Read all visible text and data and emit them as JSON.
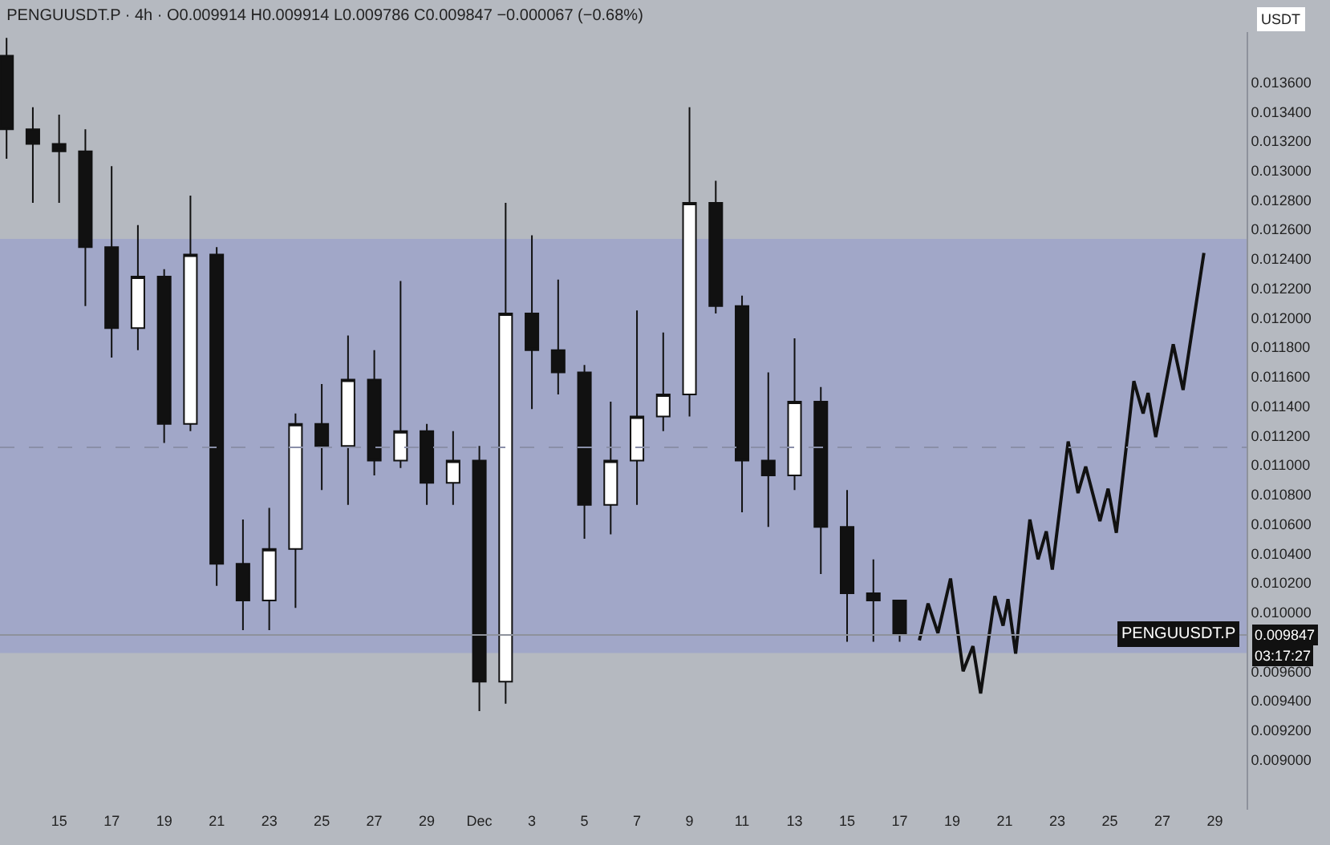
{
  "chart_data": {
    "type": "candlestick",
    "title": "PENGUUSDT.P · 4h · O0.009914 H0.009914 L0.009786 C0.009847 −0.000067 (−0.68%)",
    "ylabel": "USDT",
    "x": [
      "--11-13",
      "--11-14",
      "--11-15",
      "--11-16",
      "--11-17",
      "--11-18",
      "--11-19",
      "--11-20",
      "--11-21",
      "--11-22",
      "--11-23",
      "--11-24",
      "--11-25",
      "--11-26",
      "--11-27",
      "--11-28",
      "--11-29",
      "--11-30",
      "--12-01",
      "--12-02",
      "--12-03",
      "--12-04",
      "--12-05",
      "--12-06",
      "--12-07",
      "--12-08",
      "--12-09",
      "--12-10",
      "--12-11",
      "--12-12",
      "--12-13",
      "--12-14",
      "--12-15",
      "--12-16",
      "--12-17"
    ],
    "ohlc": [
      [
        0.01378,
        0.0139,
        0.01308,
        0.01328
      ],
      [
        0.01328,
        0.01343,
        0.01278,
        0.01318
      ],
      [
        0.01318,
        0.01338,
        0.01278,
        0.01313
      ],
      [
        0.01313,
        0.01328,
        0.01208,
        0.01248
      ],
      [
        0.01248,
        0.01303,
        0.01173,
        0.01193
      ],
      [
        0.01193,
        0.01263,
        0.01178,
        0.01228
      ],
      [
        0.01228,
        0.01233,
        0.01115,
        0.01128
      ],
      [
        0.01128,
        0.01283,
        0.01123,
        0.01243
      ],
      [
        0.01243,
        0.01248,
        0.01018,
        0.01033
      ],
      [
        0.01033,
        0.01063,
        0.00988,
        0.01008
      ],
      [
        0.01008,
        0.01071,
        0.00988,
        0.01043
      ],
      [
        0.01043,
        0.01135,
        0.01003,
        0.01128
      ],
      [
        0.01128,
        0.01155,
        0.01083,
        0.01113
      ],
      [
        0.01113,
        0.01188,
        0.01073,
        0.01158
      ],
      [
        0.01158,
        0.01178,
        0.01093,
        0.01103
      ],
      [
        0.01103,
        0.01225,
        0.01098,
        0.01123
      ],
      [
        0.01123,
        0.01128,
        0.01073,
        0.01088
      ],
      [
        0.01088,
        0.01123,
        0.01073,
        0.01103
      ],
      [
        0.01103,
        0.01113,
        0.00933,
        0.00953
      ],
      [
        0.00953,
        0.01278,
        0.00938,
        0.01203
      ],
      [
        0.01203,
        0.01256,
        0.01138,
        0.01178
      ],
      [
        0.01178,
        0.01226,
        0.01148,
        0.01163
      ],
      [
        0.01163,
        0.01168,
        0.0105,
        0.01073
      ],
      [
        0.01073,
        0.01143,
        0.01053,
        0.01103
      ],
      [
        0.01103,
        0.01205,
        0.01073,
        0.01133
      ],
      [
        0.01133,
        0.0119,
        0.01123,
        0.01148
      ],
      [
        0.01148,
        0.01343,
        0.01133,
        0.01278
      ],
      [
        0.01278,
        0.01293,
        0.01203,
        0.01208
      ],
      [
        0.01208,
        0.01215,
        0.01068,
        0.01103
      ],
      [
        0.01103,
        0.01163,
        0.01058,
        0.01093
      ],
      [
        0.01093,
        0.01186,
        0.01083,
        0.01143
      ],
      [
        0.01143,
        0.01153,
        0.01026,
        0.01058
      ],
      [
        0.01058,
        0.01083,
        0.0098,
        0.01013
      ],
      [
        0.01013,
        0.01036,
        0.0098,
        0.01008
      ],
      [
        0.01008,
        0.01008,
        0.0098,
        0.00985
      ]
    ],
    "series": [
      {
        "type": "line",
        "color": "#111111",
        "marker": "none",
        "line_style": "solid",
        "x": [
          "--12-17T18:00",
          "--12-18T02:00",
          "--12-18T11:00",
          "--12-18T22:30",
          "--12-19T10:00",
          "--12-19T19:00",
          "--12-20T02:00",
          "--12-20T15:00",
          "--12-20T22:30",
          "--12-21T03:00",
          "--12-21T10:00",
          "--12-21T23:00",
          "--12-22T06:30",
          "--12-22T14:00",
          "--12-22T19:30",
          "--12-23T10:00",
          "--12-23T19:00",
          "--12-24T02:00",
          "--12-24T15:00",
          "--12-24T22:30",
          "--12-25T06:00",
          "--12-25T22:00",
          "--12-26T06:30",
          "--12-26T11:00",
          "--12-26T18:00",
          "--12-27T10:00",
          "--12-27T19:00",
          "--12-28T14:00"
        ],
        "values": [
          0.00981,
          0.01006,
          0.00986,
          0.01023,
          0.0096,
          0.00977,
          0.00945,
          0.01011,
          0.00991,
          0.01009,
          0.00972,
          0.01063,
          0.01036,
          0.01055,
          0.01029,
          0.01116,
          0.01081,
          0.01099,
          0.01062,
          0.01084,
          0.01054,
          0.01157,
          0.01135,
          0.01149,
          0.01119,
          0.01182,
          0.01151,
          0.01244
        ]
      }
    ],
    "xlim": [
      "--11-12T18:00",
      "--12-30T05:00"
    ],
    "xticks": [
      {
        "value": "--11-15",
        "label": "15"
      },
      {
        "value": "--11-17",
        "label": "17"
      },
      {
        "value": "--11-19",
        "label": "19"
      },
      {
        "value": "--11-21",
        "label": "21"
      },
      {
        "value": "--11-23",
        "label": "23"
      },
      {
        "value": "--11-25",
        "label": "25"
      },
      {
        "value": "--11-27",
        "label": "27"
      },
      {
        "value": "--11-29",
        "label": "29"
      },
      {
        "value": "--12-01",
        "label": "Dec"
      },
      {
        "value": "--12-03",
        "label": "3"
      },
      {
        "value": "--12-05",
        "label": "5"
      },
      {
        "value": "--12-07",
        "label": "7"
      },
      {
        "value": "--12-09",
        "label": "9"
      },
      {
        "value": "--12-11",
        "label": "11"
      },
      {
        "value": "--12-13",
        "label": "13"
      },
      {
        "value": "--12-15",
        "label": "15"
      },
      {
        "value": "--12-17",
        "label": "17"
      },
      {
        "value": "--12-19",
        "label": "19"
      },
      {
        "value": "--12-21",
        "label": "21"
      },
      {
        "value": "--12-23",
        "label": "23"
      },
      {
        "value": "--12-25",
        "label": "25"
      },
      {
        "value": "--12-27",
        "label": "27"
      },
      {
        "value": "--12-29",
        "label": "29"
      }
    ],
    "ylim": [
      0.00866,
      0.01394
    ],
    "yticks": [
      {
        "value": 0.009,
        "label": "0.009000"
      },
      {
        "value": 0.0092,
        "label": "0.009200"
      },
      {
        "value": 0.0094,
        "label": "0.009400"
      },
      {
        "value": 0.0096,
        "label": "0.009600"
      },
      {
        "value": 0.01,
        "label": "0.010000"
      },
      {
        "value": 0.0102,
        "label": "0.010200"
      },
      {
        "value": 0.0104,
        "label": "0.010400"
      },
      {
        "value": 0.0106,
        "label": "0.010600"
      },
      {
        "value": 0.0108,
        "label": "0.010800"
      },
      {
        "value": 0.011,
        "label": "0.011000"
      },
      {
        "value": 0.0112,
        "label": "0.011200"
      },
      {
        "value": 0.0114,
        "label": "0.011400"
      },
      {
        "value": 0.0116,
        "label": "0.011600"
      },
      {
        "value": 0.0118,
        "label": "0.011800"
      },
      {
        "value": 0.012,
        "label": "0.012000"
      },
      {
        "value": 0.0122,
        "label": "0.012200"
      },
      {
        "value": 0.0124,
        "label": "0.012400"
      },
      {
        "value": 0.0126,
        "label": "0.012600"
      },
      {
        "value": 0.0128,
        "label": "0.012800"
      },
      {
        "value": 0.013,
        "label": "0.013000"
      },
      {
        "value": 0.0132,
        "label": "0.013200"
      },
      {
        "value": 0.0134,
        "label": "0.013400"
      },
      {
        "value": 0.0136,
        "label": "0.013600"
      }
    ],
    "bands": [
      {
        "axis": "y",
        "from": 0.00973,
        "to": 0.01253,
        "color": "#7d88d8"
      }
    ],
    "ref_lines": [
      {
        "axis": "y",
        "value": 0.01112,
        "color": "#8a8fa8",
        "line_style": "dashed"
      },
      {
        "axis": "y",
        "value": 0.009847,
        "color": "#8e929c",
        "line_style": "solid",
        "label": "PENGUUSDT.P"
      }
    ],
    "annotations": [
      "0.009847",
      "03:17:27"
    ]
  }
}
